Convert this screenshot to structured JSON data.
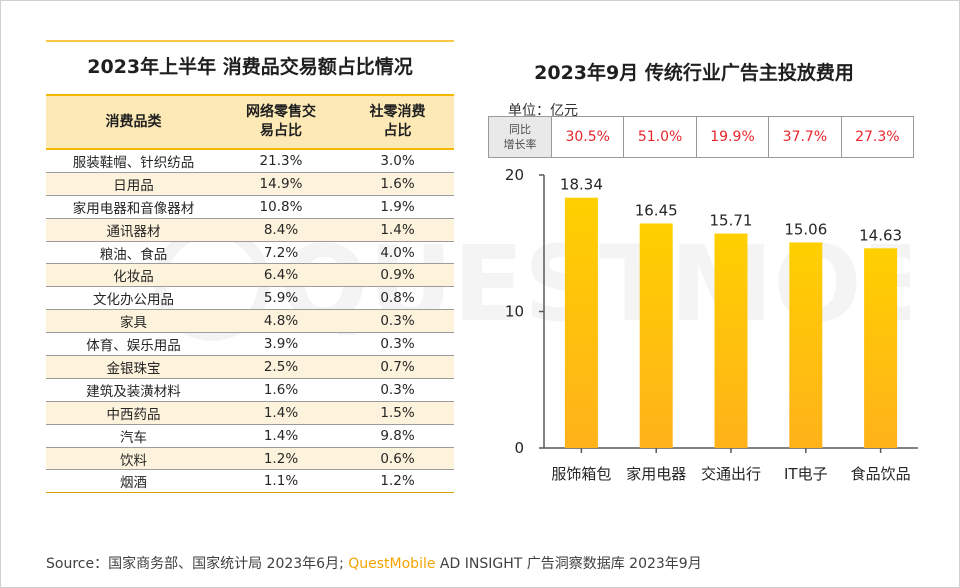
{
  "watermark": "QUESTMOBILE",
  "left": {
    "title": "2023年上半年 消费品交易额占比情况",
    "headers": [
      "消费品类",
      "网络零售交\n易占比",
      "社零消费\n占比"
    ],
    "rows": [
      {
        "name": "服装鞋帽、针织纺品",
        "online": "21.3%",
        "retail": "3.0%",
        "online_red": true,
        "retail_red": false
      },
      {
        "name": "日用品",
        "online": "14.9%",
        "retail": "1.6%",
        "online_red": true,
        "retail_red": false
      },
      {
        "name": "家用电器和音像器材",
        "online": "10.8%",
        "retail": "1.9%",
        "online_red": true,
        "retail_red": false
      },
      {
        "name": "通讯器材",
        "online": "8.4%",
        "retail": "1.4%",
        "online_red": false,
        "retail_red": false
      },
      {
        "name": "粮油、食品",
        "online": "7.2%",
        "retail": "4.0%",
        "online_red": false,
        "retail_red": true
      },
      {
        "name": "化妆品",
        "online": "6.4%",
        "retail": "0.9%",
        "online_red": false,
        "retail_red": false
      },
      {
        "name": "文化办公用品",
        "online": "5.9%",
        "retail": "0.8%",
        "online_red": false,
        "retail_red": false
      },
      {
        "name": "家具",
        "online": "4.8%",
        "retail": "0.3%",
        "online_red": false,
        "retail_red": false
      },
      {
        "name": "体育、娱乐用品",
        "online": "3.9%",
        "retail": "0.3%",
        "online_red": false,
        "retail_red": false
      },
      {
        "name": "金银珠宝",
        "online": "2.5%",
        "retail": "0.7%",
        "online_red": false,
        "retail_red": false
      },
      {
        "name": "建筑及装潢材料",
        "online": "1.6%",
        "retail": "0.3%",
        "online_red": false,
        "retail_red": false
      },
      {
        "name": "中西药品",
        "online": "1.4%",
        "retail": "1.5%",
        "online_red": false,
        "retail_red": false
      },
      {
        "name": "汽车",
        "online": "1.4%",
        "retail": "9.8%",
        "online_red": false,
        "retail_red": true
      },
      {
        "name": "饮料",
        "online": "1.2%",
        "retail": "0.6%",
        "online_red": false,
        "retail_red": false
      },
      {
        "name": "烟酒",
        "online": "1.1%",
        "retail": "1.2%",
        "online_red": false,
        "retail_red": false
      }
    ]
  },
  "right": {
    "title": "2023年9月 传统行业广告主投放费用",
    "unit": "单位：亿元",
    "growth_label": "同比\n增长率",
    "growth": [
      "30.5%",
      "51.0%",
      "19.9%",
      "37.7%",
      "27.3%"
    ]
  },
  "chart_data": {
    "type": "bar",
    "title": "2023年9月 传统行业广告主投放费用",
    "categories": [
      "服饰箱包",
      "家用电器",
      "交通出行",
      "IT电子",
      "食品饮品"
    ],
    "values": [
      18.34,
      16.45,
      15.71,
      15.06,
      14.63
    ],
    "value_labels": [
      "18.34",
      "16.45",
      "15.71",
      "15.06",
      "14.63"
    ],
    "ylabel": "单位：亿元",
    "ylim": [
      0,
      20
    ],
    "yticks": [
      0,
      10,
      20
    ],
    "grid": false,
    "legend": "none",
    "colors": {
      "bar_top": "#ffd000",
      "bar_bottom": "#ffb21a",
      "axis": "#595959"
    }
  },
  "footer": {
    "source_prefix": "Source：国家商务部、国家统计局 2023年6月; ",
    "brand": "QuestMobile",
    "source_suffix": " AD INSIGHT 广告洞察数据库 2023年9月"
  }
}
